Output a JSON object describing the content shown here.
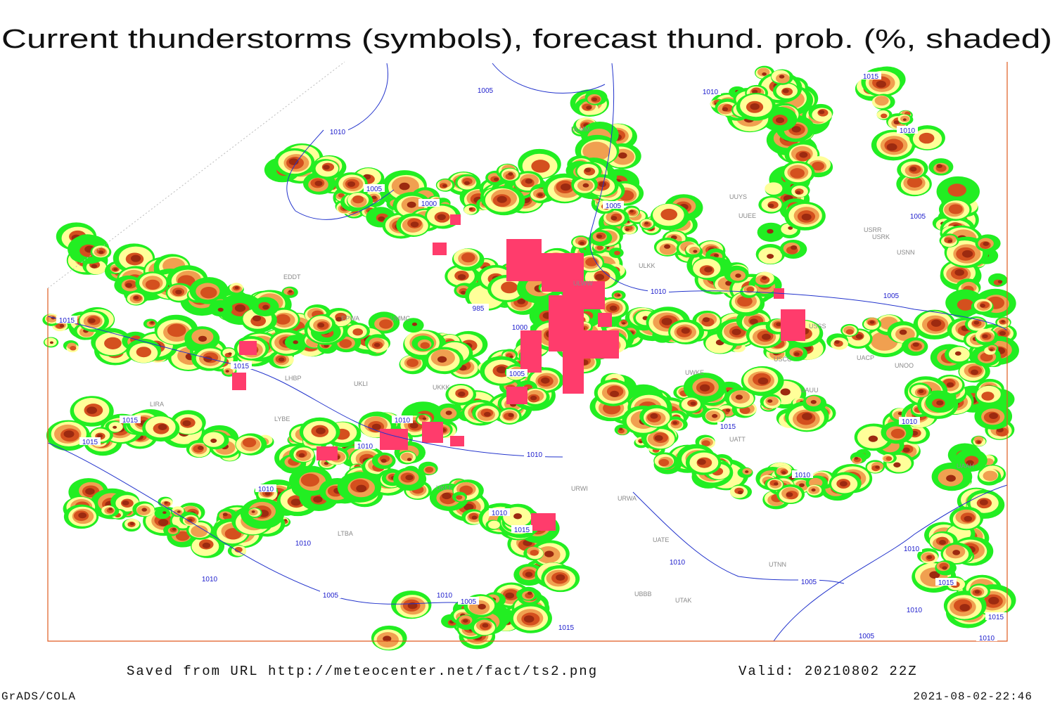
{
  "title": "Current thunderstorms (symbols), forecast thund. prob. (%, shaded)",
  "isobar_labels": [
    "1005",
    "1010",
    "1015",
    "1010",
    "1005",
    "1000",
    "1005",
    "1010",
    "1005",
    "1005",
    "1010",
    "985",
    "1000",
    "1005",
    "1015",
    "1015",
    "1015",
    "1015",
    "1010",
    "1010",
    "1010",
    "1015",
    "1010",
    "1010",
    "1010",
    "1010",
    "1015",
    "1010",
    "1010",
    "1010",
    "1015",
    "1005",
    "1010",
    "1005",
    "1010",
    "1005",
    "1015",
    "1005",
    "1010",
    "1015",
    "1010"
  ],
  "station_labels": [
    "ULMM",
    "UUYS",
    "USRR",
    "USNN",
    "EDDT",
    "ULKK",
    "ULWW",
    "UMMC",
    "EPWA",
    "UKLI",
    "LHBP",
    "LIRA",
    "LYBE",
    "UKKK",
    "USSS",
    "UNOO",
    "UACP",
    "UAUU",
    "USCC",
    "UATT",
    "UAAH",
    "UTNN",
    "UTAK",
    "UBBB",
    "UATE",
    "URWA",
    "URWI",
    "UKFF",
    "LTBA",
    "UWKE",
    "USRK",
    "UUEE"
  ],
  "footer": {
    "saved": "Saved from URL http://meteocenter.net/fact/ts2.png",
    "valid": "Valid: 20210802 22Z",
    "software": "GrADS/COLA",
    "timestamp": "2021-08-02-22:46"
  }
}
